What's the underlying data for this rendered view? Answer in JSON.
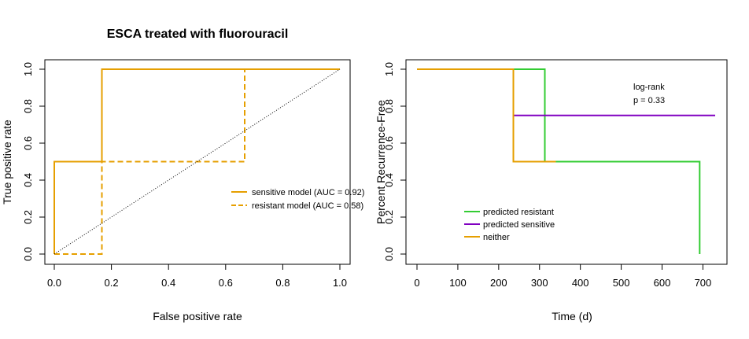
{
  "chart_data": [
    {
      "type": "line",
      "title": "ESCA treated with fluorouracil",
      "xlabel": "False positive rate",
      "ylabel": "True positive rate",
      "xlim": [
        0,
        1
      ],
      "ylim": [
        0,
        1
      ],
      "x_ticks": [
        0.0,
        0.2,
        0.4,
        0.6,
        0.8,
        1.0
      ],
      "x_tick_labels": [
        "0.0",
        "0.2",
        "0.4",
        "0.6",
        "0.8",
        "1.0"
      ],
      "y_ticks": [
        0.0,
        0.2,
        0.4,
        0.6,
        0.8,
        1.0
      ],
      "y_tick_labels": [
        "0.0",
        "0.2",
        "0.4",
        "0.6",
        "0.8",
        "1.0"
      ],
      "grid": false,
      "legend_position": "right",
      "series": [
        {
          "name": "sensitive model (AUC = 0.92)",
          "color": "#E69F00",
          "dash": "solid",
          "x": [
            0,
            0,
            0.1667,
            0.1667,
            1.0
          ],
          "y": [
            0,
            0.5,
            0.5,
            1.0,
            1.0
          ]
        },
        {
          "name": "resistant model (AUC = 0.58)",
          "color": "#E69F00",
          "dash": "dashed",
          "x": [
            0,
            0.1667,
            0.1667,
            0.6667,
            0.6667,
            1.0
          ],
          "y": [
            0,
            0,
            0.5,
            0.5,
            1.0,
            1.0
          ]
        },
        {
          "name": "",
          "color": "#000000",
          "dash": "dotted",
          "x": [
            0,
            1
          ],
          "y": [
            0,
            1
          ]
        }
      ]
    },
    {
      "type": "line",
      "title": "",
      "xlabel": "Time (d)",
      "ylabel": "Percent Recurrence-Free",
      "xlim": [
        0,
        730
      ],
      "ylim": [
        0,
        1
      ],
      "x_ticks": [
        0,
        100,
        200,
        300,
        400,
        500,
        600,
        700
      ],
      "x_tick_labels": [
        "0",
        "100",
        "200",
        "300",
        "400",
        "500",
        "600",
        "700"
      ],
      "y_ticks": [
        0.0,
        0.2,
        0.4,
        0.6,
        0.8,
        1.0
      ],
      "y_tick_labels": [
        "0.0",
        "0.2",
        "0.4",
        "0.6",
        "0.8",
        "1.0"
      ],
      "grid": false,
      "legend_position": "bottom-left",
      "annotation": [
        "log-rank",
        "p = 0.33"
      ],
      "series": [
        {
          "name": "predicted resistant",
          "color": "#33CC33",
          "dash": "solid",
          "x": [
            0,
            313,
            313,
            692,
            692
          ],
          "y": [
            1.0,
            1.0,
            0.5,
            0.5,
            0.0
          ]
        },
        {
          "name": "predicted sensitive",
          "color": "#8000C0",
          "dash": "solid",
          "x": [
            236,
            730
          ],
          "y": [
            0.75,
            0.75
          ]
        },
        {
          "name": "neither",
          "color": "#E69F00",
          "dash": "solid",
          "x": [
            0,
            236,
            236,
            340
          ],
          "y": [
            1.0,
            1.0,
            0.5,
            0.5
          ]
        }
      ]
    }
  ]
}
